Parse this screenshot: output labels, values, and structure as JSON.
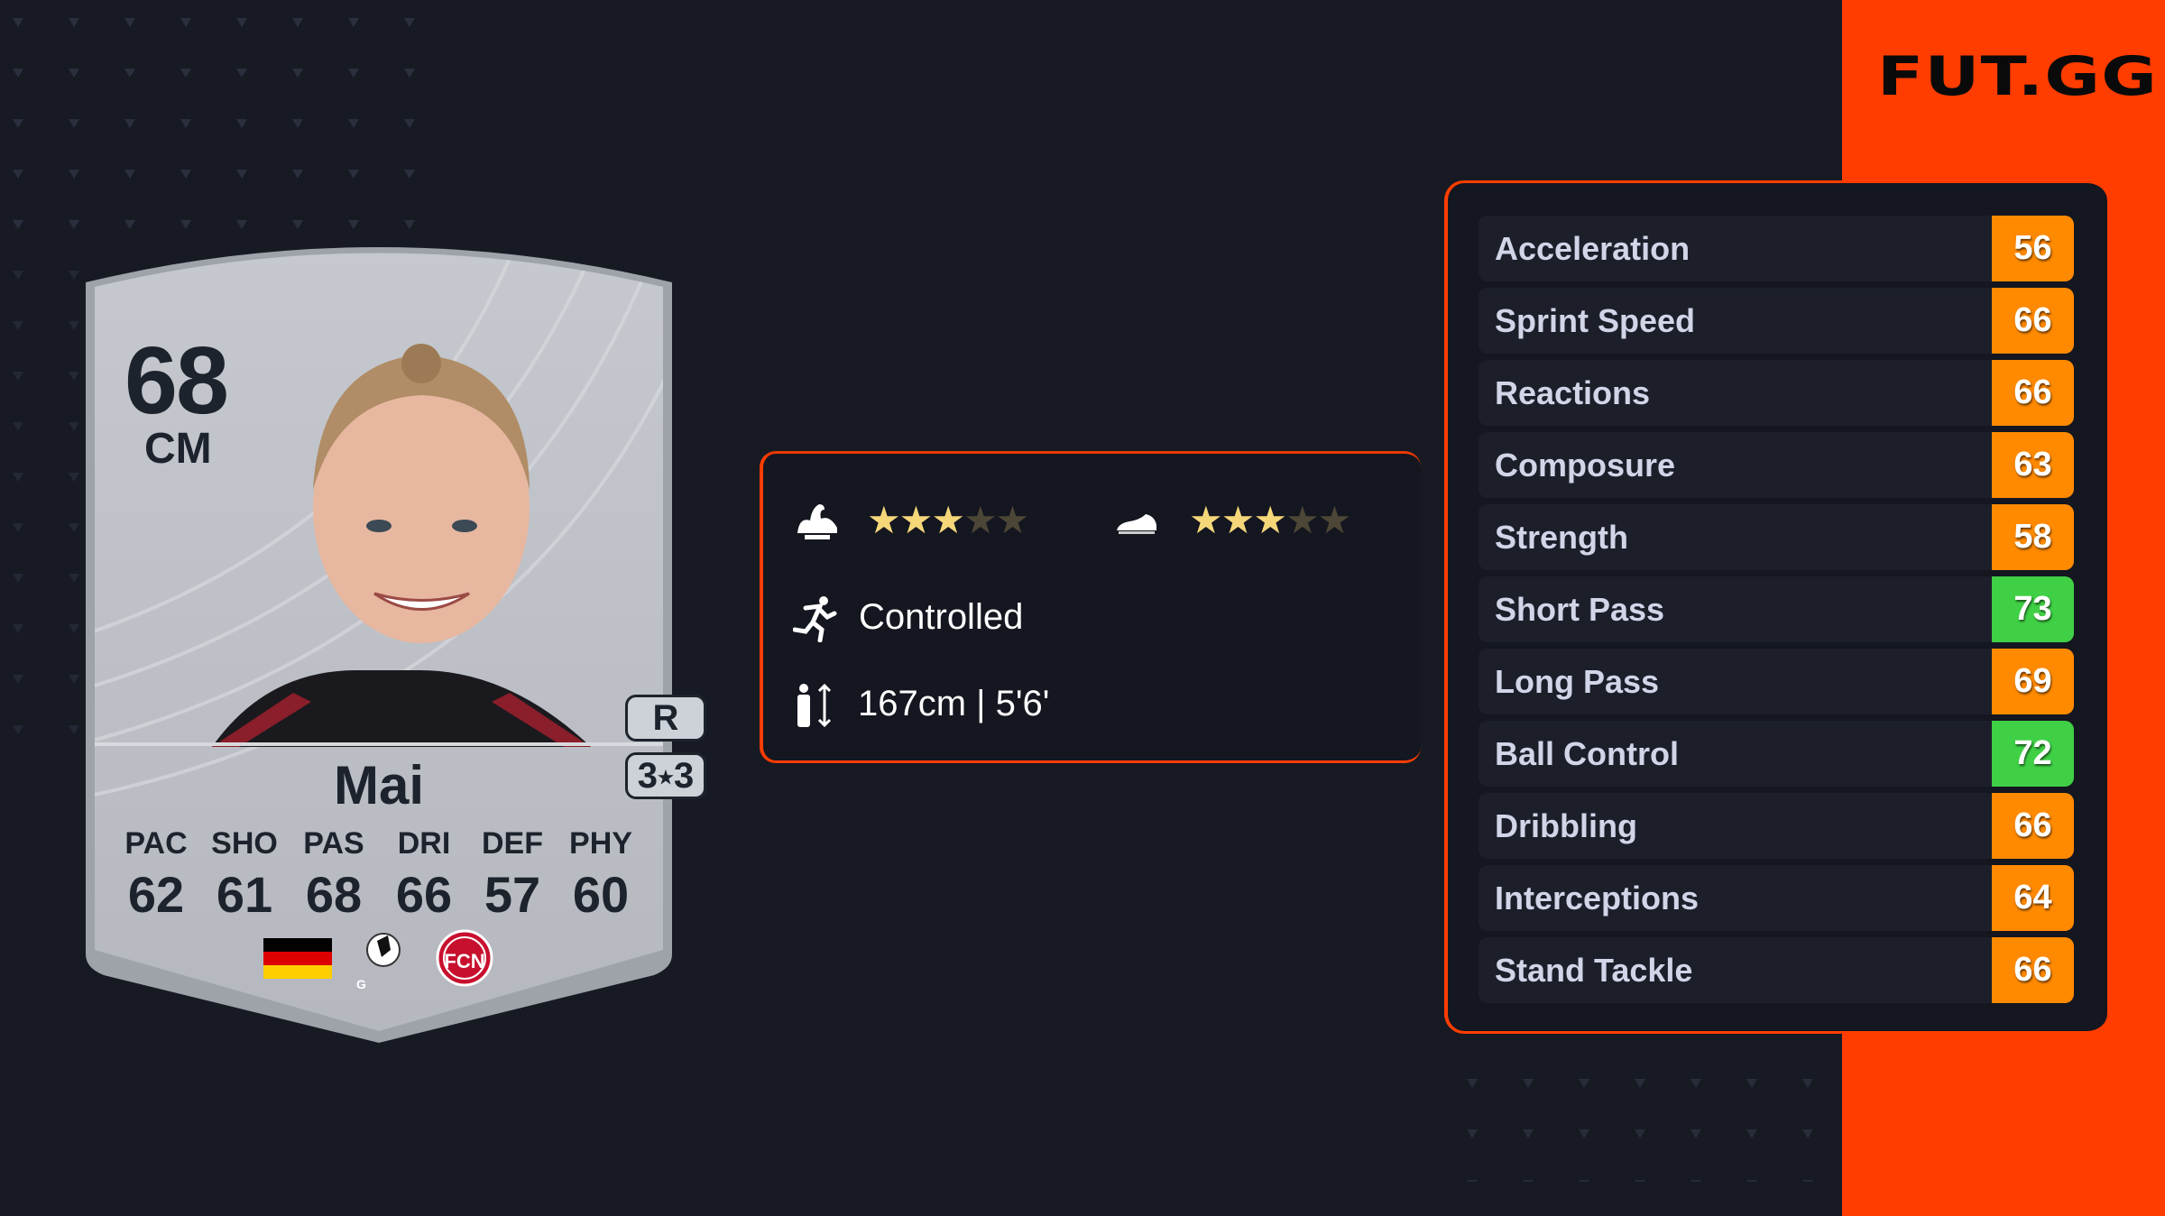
{
  "brand": {
    "logo": "FUT.GG",
    "accent": "#ff3d00"
  },
  "card": {
    "rating": "68",
    "position": "CM",
    "name": "Mai",
    "preferred_foot": "R",
    "skill_weak": {
      "left": "3",
      "right": "3"
    },
    "attributes": [
      {
        "label": "PAC",
        "value": "62"
      },
      {
        "label": "SHO",
        "value": "61"
      },
      {
        "label": "PAS",
        "value": "68"
      },
      {
        "label": "DRI",
        "value": "66"
      },
      {
        "label": "DEF",
        "value": "57"
      },
      {
        "label": "PHY",
        "value": "60"
      }
    ],
    "nation": "germany-flag",
    "league": "google-pixel-frauen-bundesliga-logo",
    "club": "1-fcn-crest"
  },
  "info": {
    "skill_moves_stars": 3,
    "weak_foot_stars": 3,
    "max_stars": 5,
    "work_rate": "Controlled",
    "height": "167cm | 5'6'"
  },
  "stats": [
    {
      "label": "Acceleration",
      "value": "56",
      "color": "#ff8a00"
    },
    {
      "label": "Sprint Speed",
      "value": "66",
      "color": "#ff8a00"
    },
    {
      "label": "Reactions",
      "value": "66",
      "color": "#ff8a00"
    },
    {
      "label": "Composure",
      "value": "63",
      "color": "#ff8a00"
    },
    {
      "label": "Strength",
      "value": "58",
      "color": "#ff8a00"
    },
    {
      "label": "Short Pass",
      "value": "73",
      "color": "#3fd045"
    },
    {
      "label": "Long Pass",
      "value": "69",
      "color": "#ff8a00"
    },
    {
      "label": "Ball Control",
      "value": "72",
      "color": "#3fd045"
    },
    {
      "label": "Dribbling",
      "value": "66",
      "color": "#ff8a00"
    },
    {
      "label": "Interceptions",
      "value": "64",
      "color": "#ff8a00"
    },
    {
      "label": "Stand Tackle",
      "value": "66",
      "color": "#ff8a00"
    }
  ]
}
